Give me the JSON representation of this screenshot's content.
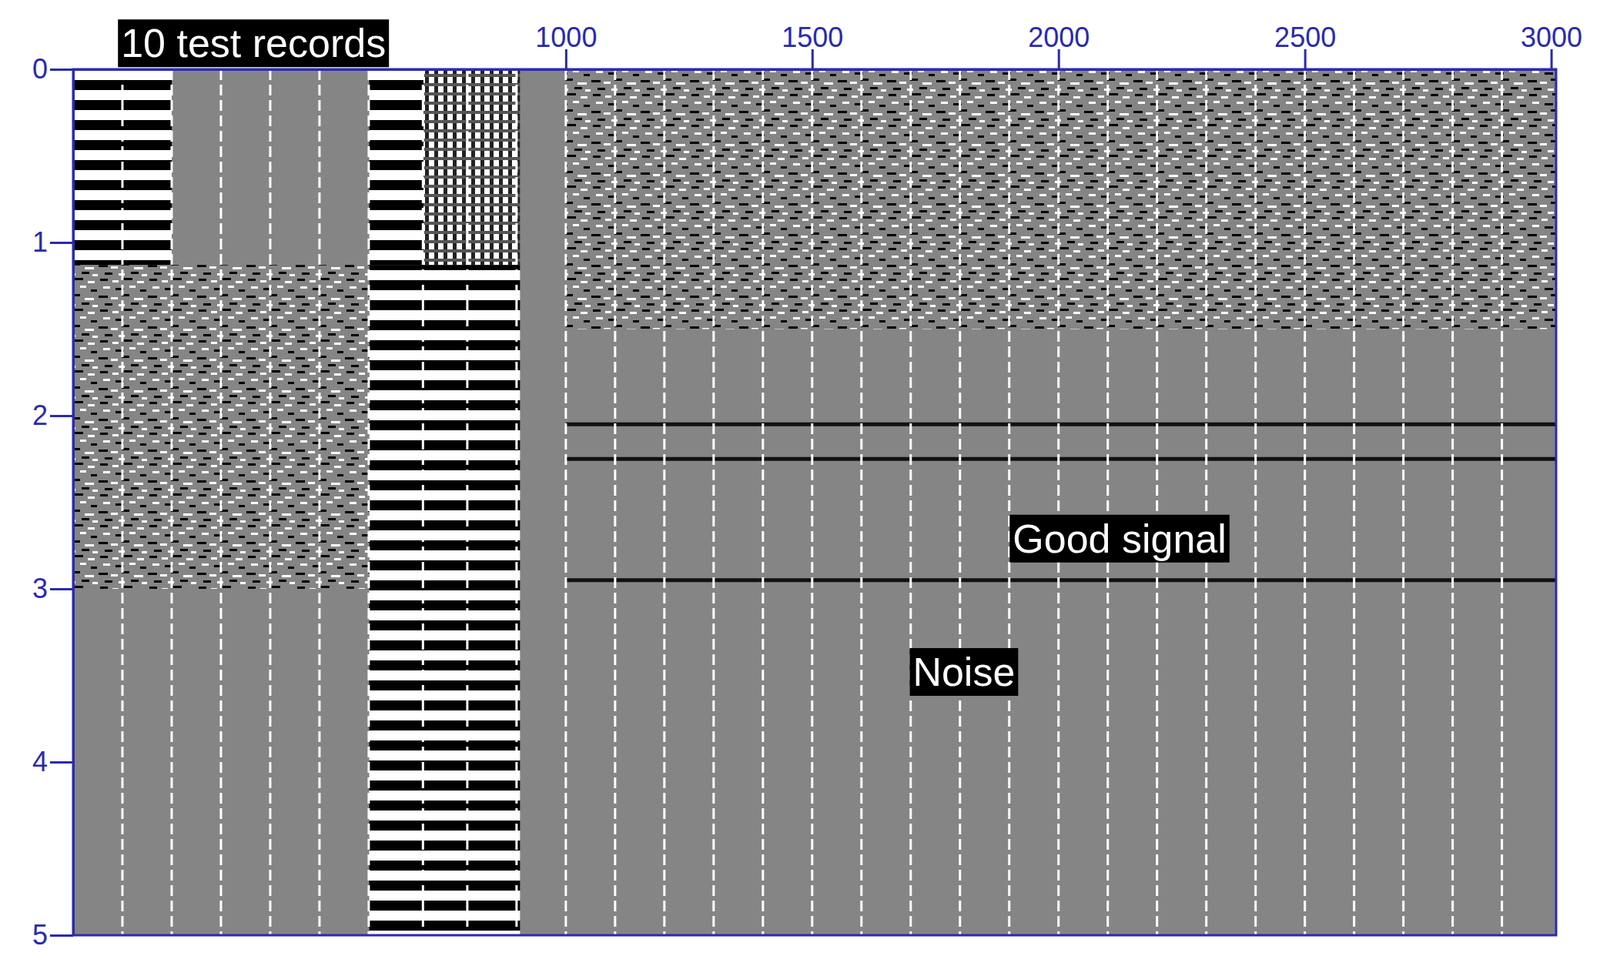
{
  "chart_data": {
    "type": "seismic",
    "xlim": [
      0,
      3010
    ],
    "xticks": [
      1000,
      1500,
      2000,
      2500,
      3000
    ],
    "ylim": [
      0,
      5
    ],
    "yticks": [
      0,
      1,
      2,
      3,
      4,
      5
    ],
    "panels": [
      {
        "type": "stripes",
        "x": [
          0,
          200
        ],
        "y": [
          0,
          1.13
        ]
      },
      {
        "type": "stripes",
        "x": [
          601,
          711
        ],
        "y": [
          0,
          1.13
        ]
      },
      {
        "type": "fine_stripes",
        "x": [
          711,
          907
        ],
        "y": [
          0,
          1.13
        ]
      },
      {
        "type": "stripes",
        "x": [
          601,
          907
        ],
        "y": [
          1.13,
          5
        ]
      },
      {
        "type": "noise",
        "x": [
          0,
          601
        ],
        "y": [
          1.13,
          3.0
        ]
      },
      {
        "type": "noise",
        "x": [
          1000,
          3010
        ],
        "y": [
          0,
          1.5
        ]
      }
    ],
    "record_boundaries": [
      100,
      200,
      300,
      400,
      500,
      600,
      710,
      800,
      900,
      1000,
      1100,
      1200,
      1300,
      1400,
      1500,
      1600,
      1700,
      1800,
      1900,
      2000,
      2100,
      2200,
      2300,
      2400,
      2500,
      2600,
      2700,
      2800,
      2900
    ],
    "horizons": [
      {
        "x": [
          1000,
          3010
        ],
        "values": [
          2.05,
          2.05
        ]
      },
      {
        "x": [
          1000,
          3010
        ],
        "values": [
          2.25,
          2.25
        ]
      },
      {
        "x": [
          1000,
          3010
        ],
        "values": [
          2.95,
          2.95
        ]
      }
    ],
    "annotations": [
      {
        "text": "10 test records",
        "x": 366,
        "y": -0.15
      },
      {
        "text": "Good signal",
        "x": 2124,
        "y": 2.71
      },
      {
        "text": "Noise",
        "x": 1808,
        "y": 3.48
      }
    ]
  }
}
